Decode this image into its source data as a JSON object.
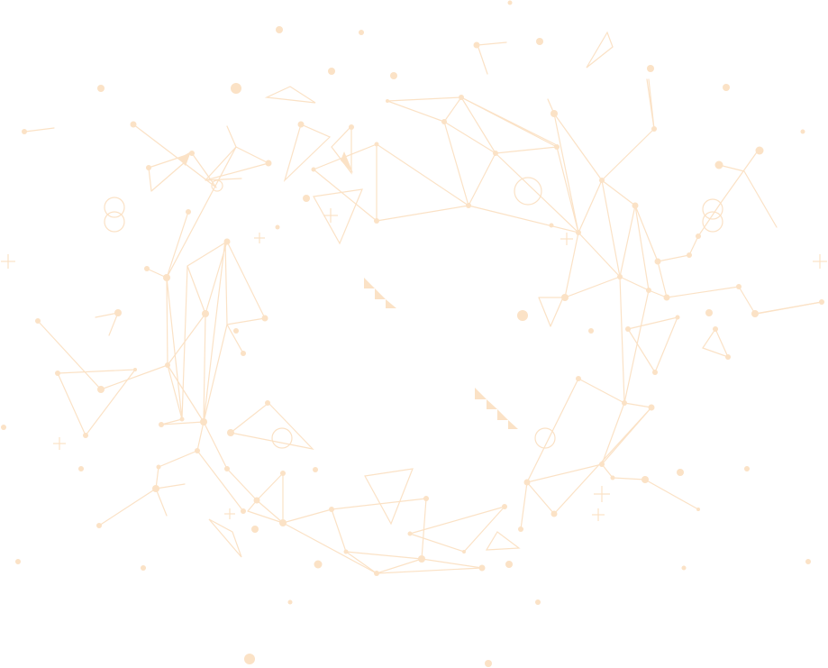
{
  "graphic": {
    "kind": "decorative constellation wreath",
    "stroke_color": "#fbe2c6",
    "fill_color": "#fbe2c6",
    "background": "#ffffff"
  }
}
